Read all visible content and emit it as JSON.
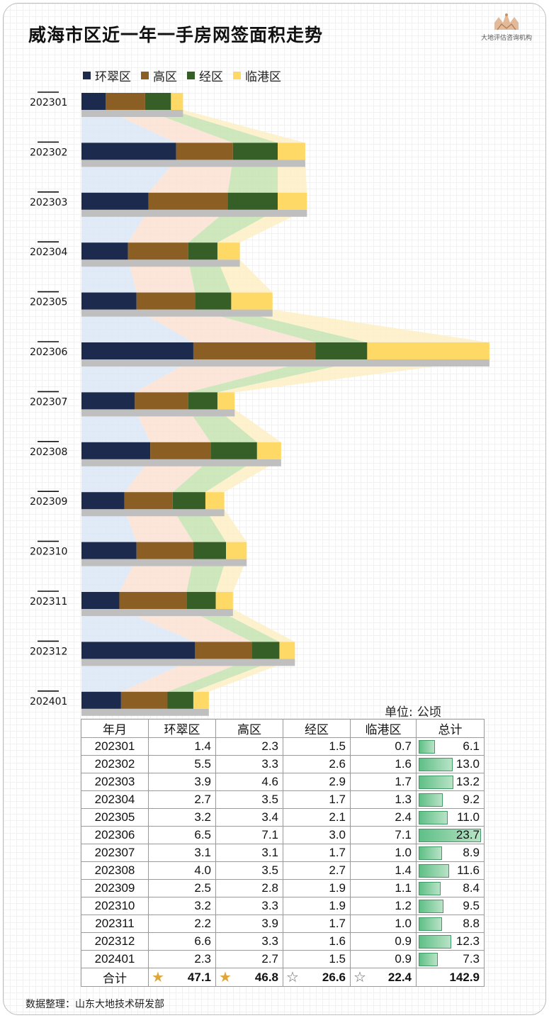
{
  "title": "威海市区近一年一手房网签面积走势",
  "logo": {
    "text": "大地评估咨询机构"
  },
  "unit": {
    "label": "单位:",
    "value": "公顷"
  },
  "source": "数据整理：山东大地技术研发部",
  "colors": {
    "huancui": "#1b2a4d",
    "gaoqu": "#8b5e24",
    "jingqu": "#365f27",
    "lingang": "#ffd966",
    "base": "#bfbfbf",
    "ribbon_huancui": "#dbe8f6",
    "ribbon_gaoqu": "#fce2d2",
    "ribbon_jingqu": "#c5e3b0",
    "ribbon_lingang": "#fdf0c4"
  },
  "legend": [
    {
      "name": "环翠区",
      "color": "#1b2a4d"
    },
    {
      "name": "高区",
      "color": "#8b5e24"
    },
    {
      "name": "经区",
      "color": "#365f27"
    },
    {
      "name": "临港区",
      "color": "#ffd966"
    }
  ],
  "table": {
    "headers": [
      "年月",
      "环翠区",
      "高区",
      "经区",
      "临港区",
      "总计"
    ],
    "rows": [
      {
        "month": "202301",
        "vals": [
          "1.4",
          "2.3",
          "1.5",
          "0.7"
        ],
        "total": "6.1",
        "total_num": 6.1
      },
      {
        "month": "202302",
        "vals": [
          "5.5",
          "3.3",
          "2.6",
          "1.6"
        ],
        "total": "13.0",
        "total_num": 13.0
      },
      {
        "month": "202303",
        "vals": [
          "3.9",
          "4.6",
          "2.9",
          "1.7"
        ],
        "total": "13.2",
        "total_num": 13.2
      },
      {
        "month": "202304",
        "vals": [
          "2.7",
          "3.5",
          "1.7",
          "1.3"
        ],
        "total": "9.2",
        "total_num": 9.2
      },
      {
        "month": "202305",
        "vals": [
          "3.2",
          "3.4",
          "2.1",
          "2.4"
        ],
        "total": "11.0",
        "total_num": 11.0
      },
      {
        "month": "202306",
        "vals": [
          "6.5",
          "7.1",
          "3.0",
          "7.1"
        ],
        "total": "23.7",
        "total_num": 23.7
      },
      {
        "month": "202307",
        "vals": [
          "3.1",
          "3.1",
          "1.7",
          "1.0"
        ],
        "total": "8.9",
        "total_num": 8.9
      },
      {
        "month": "202308",
        "vals": [
          "4.0",
          "3.5",
          "2.7",
          "1.4"
        ],
        "total": "11.6",
        "total_num": 11.6
      },
      {
        "month": "202309",
        "vals": [
          "2.5",
          "2.8",
          "1.9",
          "1.1"
        ],
        "total": "8.4",
        "total_num": 8.4
      },
      {
        "month": "202310",
        "vals": [
          "3.2",
          "3.3",
          "1.9",
          "1.2"
        ],
        "total": "9.5",
        "total_num": 9.5
      },
      {
        "month": "202311",
        "vals": [
          "2.2",
          "3.9",
          "1.7",
          "1.0"
        ],
        "total": "8.8",
        "total_num": 8.8
      },
      {
        "month": "202312",
        "vals": [
          "6.6",
          "3.3",
          "1.6",
          "0.9"
        ],
        "total": "12.3",
        "total_num": 12.3
      },
      {
        "month": "202401",
        "vals": [
          "2.3",
          "2.7",
          "1.5",
          "0.9"
        ],
        "total": "7.3",
        "total_num": 7.3
      }
    ],
    "summary": {
      "label": "合计",
      "vals": [
        "47.1",
        "46.8",
        "26.6",
        "22.4"
      ],
      "stars": [
        "gold",
        "gold",
        "hollow",
        "hollow"
      ],
      "total": "142.9"
    }
  },
  "chart_data": {
    "type": "bar",
    "orientation": "horizontal",
    "stacked": true,
    "title": "威海市区近一年一手房网签面积走势",
    "unit": "公顷",
    "categories": [
      "202301",
      "202302",
      "202303",
      "202304",
      "202305",
      "202306",
      "202307",
      "202308",
      "202309",
      "202310",
      "202311",
      "202312",
      "202401"
    ],
    "series": [
      {
        "name": "环翠区",
        "color": "#1b2a4d",
        "values": [
          1.4,
          5.5,
          3.9,
          2.7,
          3.2,
          6.5,
          3.1,
          4.0,
          2.5,
          3.2,
          2.2,
          6.6,
          2.3
        ]
      },
      {
        "name": "高区",
        "color": "#8b5e24",
        "values": [
          2.3,
          3.3,
          4.6,
          3.5,
          3.4,
          7.1,
          3.1,
          3.5,
          2.8,
          3.3,
          3.9,
          3.3,
          2.7
        ]
      },
      {
        "name": "经区",
        "color": "#365f27",
        "values": [
          1.5,
          2.6,
          2.9,
          1.7,
          2.1,
          3.0,
          1.7,
          2.7,
          1.9,
          1.9,
          1.7,
          1.6,
          1.5
        ]
      },
      {
        "name": "临港区",
        "color": "#ffd966",
        "values": [
          0.7,
          1.6,
          1.7,
          1.3,
          2.4,
          7.1,
          1.0,
          1.4,
          1.1,
          1.2,
          1.0,
          0.9,
          0.9
        ]
      }
    ],
    "totals": [
      6.1,
      13.0,
      13.2,
      9.2,
      11.0,
      23.7,
      8.9,
      11.6,
      8.4,
      9.5,
      8.8,
      12.3,
      7.3
    ],
    "legend_position": "top-left",
    "grid": false
  }
}
